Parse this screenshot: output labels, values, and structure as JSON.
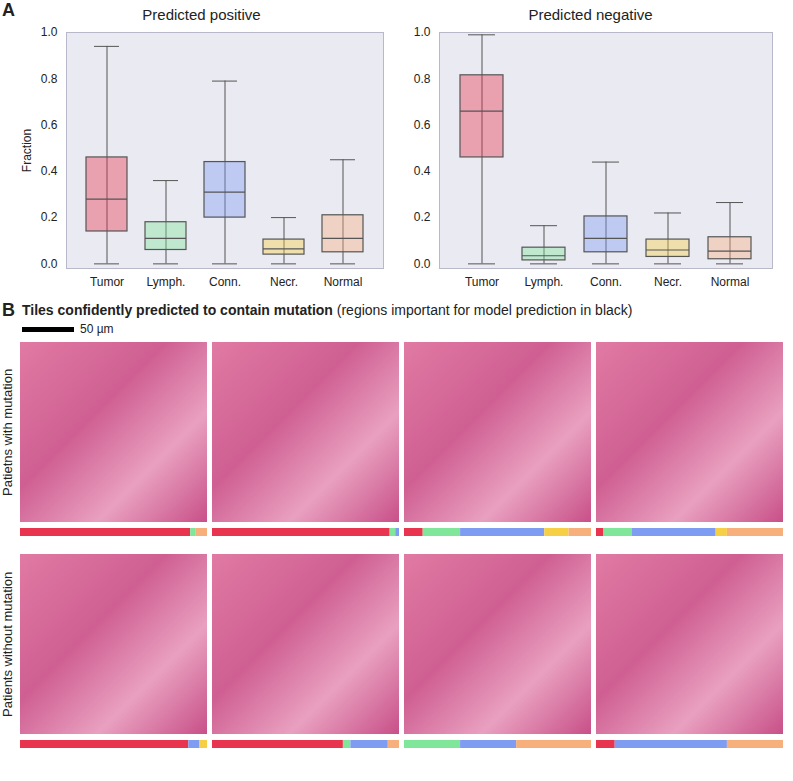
{
  "chart_data": [
    {
      "panel": "A",
      "type": "box",
      "title": "Predicted positive",
      "y_label": "Fraction",
      "categories": [
        "Tumor",
        "Lymph.",
        "Conn.",
        "Necr.",
        "Normal"
      ],
      "colors": [
        "#e8344e",
        "#7fe69a",
        "#7e9cf2",
        "#f7cf45",
        "#f7b07c"
      ],
      "boxes": {
        "whisker_low": [
          0,
          0,
          0,
          0,
          0
        ],
        "q1": [
          0.14,
          0.06,
          0.2,
          0.04,
          0.05
        ],
        "median": [
          0.28,
          0.11,
          0.31,
          0.065,
          0.11
        ],
        "q3": [
          0.46,
          0.18,
          0.44,
          0.105,
          0.21
        ],
        "whisker_high": [
          0.94,
          0.36,
          0.79,
          0.2,
          0.45
        ]
      },
      "ylim": [
        -0.02,
        1.0
      ],
      "yticks": [
        {
          "value": 0,
          "label": "0.0"
        },
        0.2,
        0.4,
        0.6,
        0.8,
        {
          "value": 1,
          "label": "1.0"
        }
      ],
      "grid": false
    },
    {
      "type": "box",
      "title": "Predicted negative",
      "categories": [
        "Tumor",
        "Lymph.",
        "Conn.",
        "Necr.",
        "Normal"
      ],
      "colors": [
        "#e8344e",
        "#7fe69a",
        "#7e9cf2",
        "#f7cf45",
        "#f7b07c"
      ],
      "boxes": {
        "whisker_low": [
          0,
          0,
          0,
          0,
          0
        ],
        "q1": [
          0.46,
          0.015,
          0.05,
          0.03,
          0.02
        ],
        "median": [
          0.66,
          0.035,
          0.11,
          0.06,
          0.055
        ],
        "q3": [
          0.815,
          0.07,
          0.205,
          0.105,
          0.115
        ],
        "whisker_high": [
          0.99,
          0.165,
          0.44,
          0.22,
          0.265
        ]
      },
      "ylim": [
        -0.02,
        1.0
      ],
      "yticks": [
        {
          "value": 0,
          "label": "0.0"
        },
        0.2,
        0.4,
        0.6,
        0.8,
        {
          "value": 1,
          "label": "1.0"
        }
      ],
      "grid": false
    },
    {
      "panel": "B",
      "type": "bar",
      "orientation": "horizontal",
      "stacked": true,
      "tick_labels": false,
      "title": "Tiles confidently predicted to contain mutation",
      "subtitle": "(regions important for model prediction in black)",
      "scale_bar": "50 µm",
      "row_labels": [
        "Patietns with mutation",
        "Patients without mutation"
      ],
      "categories": [
        null,
        null,
        null,
        null,
        null,
        null,
        null,
        null
      ],
      "xlim": [
        0,
        1
      ],
      "series": [
        {
          "name": "Tumor",
          "color": "#e8344e",
          "values": [
            0.91,
            0.95,
            0.1,
            0.04,
            0.9,
            0.7,
            0,
            0.1
          ]
        },
        {
          "name": "Lymph.",
          "color": "#7fe69a",
          "values": [
            0.03,
            0.03,
            0.2,
            0.15,
            0,
            0.04,
            0.3,
            0
          ]
        },
        {
          "name": "Conn.",
          "color": "#7e9cf2",
          "values": [
            0,
            0.02,
            0.45,
            0.45,
            0.06,
            0.2,
            0.3,
            0.6
          ]
        },
        {
          "name": "Necr.",
          "color": "#f7cf45",
          "values": [
            0,
            0,
            0.13,
            0.06,
            0.04,
            0,
            0,
            0
          ]
        },
        {
          "name": "Normal",
          "color": "#f7b07c",
          "values": [
            0.06,
            0,
            0.12,
            0.3,
            0,
            0.06,
            0.4,
            0.3
          ]
        }
      ]
    }
  ]
}
